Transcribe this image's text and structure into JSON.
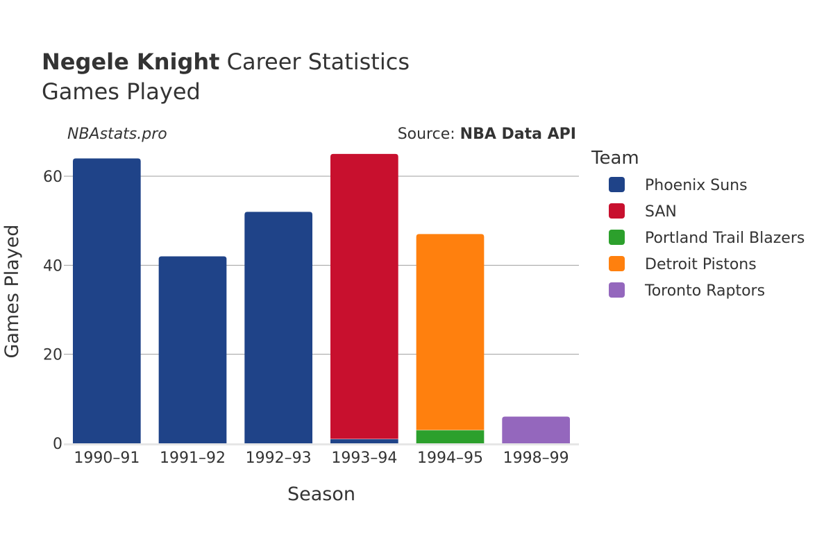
{
  "header": {
    "player_name": "Negele Knight",
    "title_suffix": " Career Statistics",
    "subtitle": "Games Played"
  },
  "credits": {
    "site": "NBAstats.pro",
    "source_prefix": "Source: ",
    "source_name": "NBA Data API"
  },
  "chart_data": {
    "type": "bar",
    "stacked": true,
    "title": "Negele Knight Career Statistics",
    "subtitle": "Games Played",
    "xlabel": "Season",
    "ylabel": "Games Played",
    "categories": [
      "1990–91",
      "1991–92",
      "1992–93",
      "1993–94",
      "1994–95",
      "1998–99"
    ],
    "ylim": [
      0,
      65
    ],
    "yticks": [
      0,
      20,
      40,
      60
    ],
    "grid": true,
    "legend_title": "Team",
    "legend_position": "right",
    "series": [
      {
        "name": "Phoenix Suns",
        "color": "#1f4388",
        "values": [
          64,
          42,
          52,
          1,
          0,
          0
        ]
      },
      {
        "name": "SAN",
        "color": "#c8102e",
        "values": [
          0,
          0,
          0,
          64,
          0,
          0
        ]
      },
      {
        "name": "Portland Trail Blazers",
        "color": "#2ca02c",
        "values": [
          0,
          0,
          0,
          0,
          3,
          0
        ]
      },
      {
        "name": "Detroit Pistons",
        "color": "#ff800e",
        "values": [
          0,
          0,
          0,
          0,
          44,
          0
        ]
      },
      {
        "name": "Toronto Raptors",
        "color": "#9467bd",
        "values": [
          0,
          0,
          0,
          0,
          0,
          6
        ]
      }
    ]
  }
}
